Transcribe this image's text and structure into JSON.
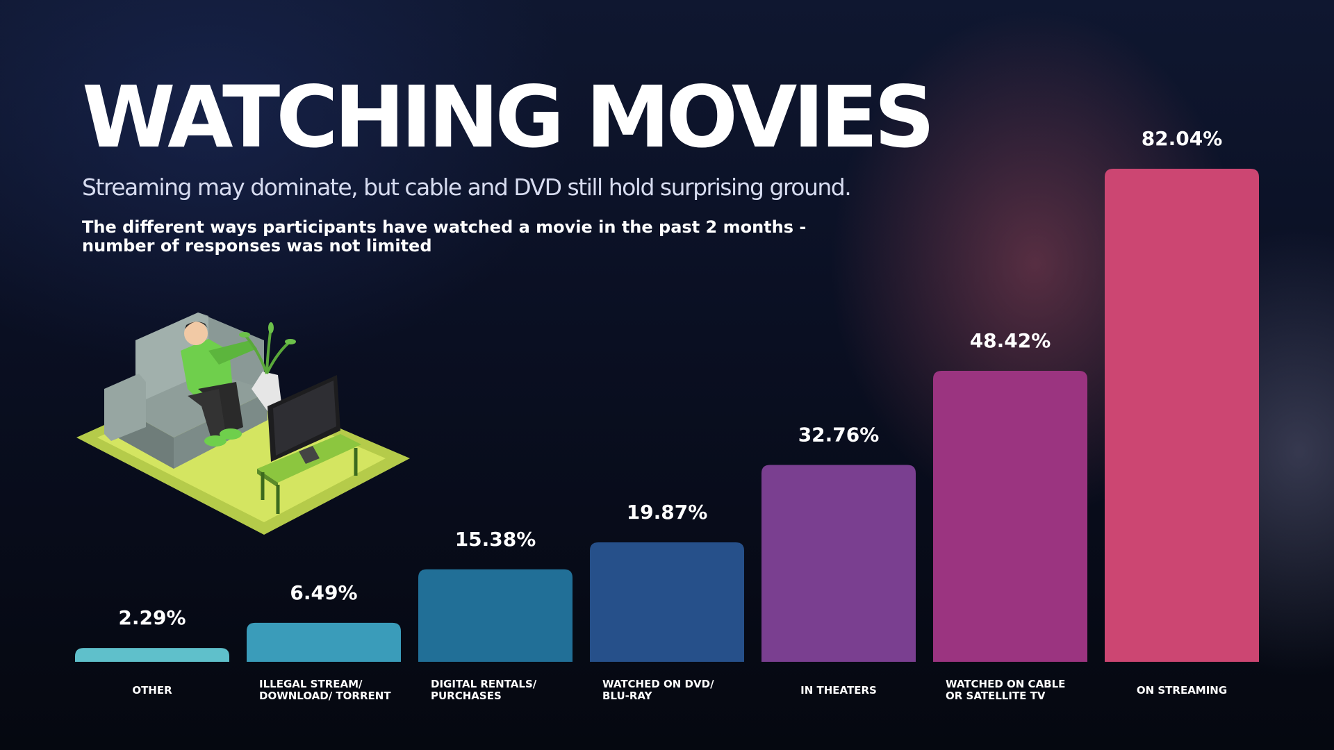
{
  "title": "WATCHING MOVIES",
  "subtitle": "Streaming may dominate, but cable and DVD still hold surprising ground.",
  "note_lines": [
    "The different ways participants have watched a movie in the past 2 months -",
    "number of responses was not limited"
  ],
  "icons": [
    "person-on-couch-watching-tv-illustration"
  ],
  "colors": {
    "background": "#0b1124",
    "bars": [
      "#5fc0cb",
      "#3a9cba",
      "#216f97",
      "#26508a",
      "#7a3f90",
      "#9b3480",
      "#cc4672"
    ]
  },
  "chart_data": {
    "type": "bar",
    "title": "",
    "xlabel": "",
    "ylabel": "",
    "ylim": [
      0,
      100
    ],
    "grid": false,
    "value_format": "percent",
    "categories": [
      [
        "OTHER"
      ],
      [
        "ILLEGAL STREAM/",
        "DOWNLOAD/ TORRENT"
      ],
      [
        "DIGITAL RENTALS/",
        "PURCHASES"
      ],
      [
        "WATCHED ON DVD/",
        "BLU-RAY"
      ],
      [
        "IN THEATERS"
      ],
      [
        "WATCHED ON CABLE",
        "OR SATELLITE TV"
      ],
      [
        "ON STREAMING"
      ]
    ],
    "values": [
      2.29,
      6.49,
      15.38,
      19.87,
      32.76,
      48.42,
      82.04
    ],
    "value_labels": [
      "2.29%",
      "6.49%",
      "15.38%",
      "19.87%",
      "32.76%",
      "48.42%",
      "82.04%"
    ]
  }
}
